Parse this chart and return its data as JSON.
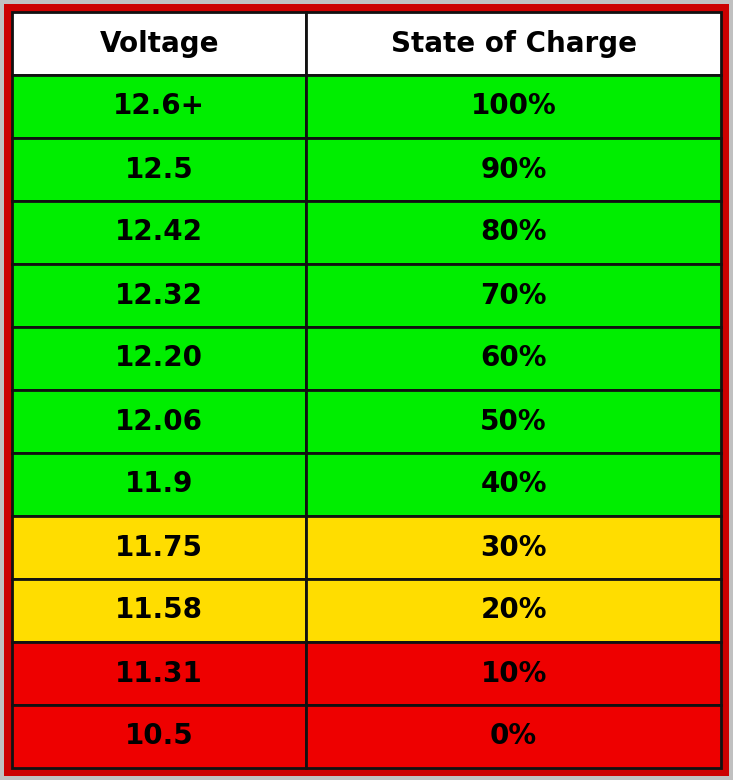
{
  "headers": [
    "Voltage",
    "State of Charge"
  ],
  "rows": [
    [
      "12.6+",
      "100%"
    ],
    [
      "12.5",
      "90%"
    ],
    [
      "12.42",
      "80%"
    ],
    [
      "12.32",
      "70%"
    ],
    [
      "12.20",
      "60%"
    ],
    [
      "12.06",
      "50%"
    ],
    [
      "11.9",
      "40%"
    ],
    [
      "11.75",
      "30%"
    ],
    [
      "11.58",
      "20%"
    ],
    [
      "11.31",
      "10%"
    ],
    [
      "10.5",
      "0%"
    ]
  ],
  "row_colors": [
    "#00ee00",
    "#00ee00",
    "#00ee00",
    "#00ee00",
    "#00ee00",
    "#00ee00",
    "#00ee00",
    "#ffdd00",
    "#ffdd00",
    "#ee0000",
    "#ee0000"
  ],
  "header_bg": "#ffffff",
  "header_text_color": "#000000",
  "cell_text_color": "#000000",
  "outer_frame_color": "#c0c0c0",
  "border_red_color": "#cc0000",
  "border_inner_color": "#111111",
  "font_size_header": 20,
  "font_size_cell": 20
}
